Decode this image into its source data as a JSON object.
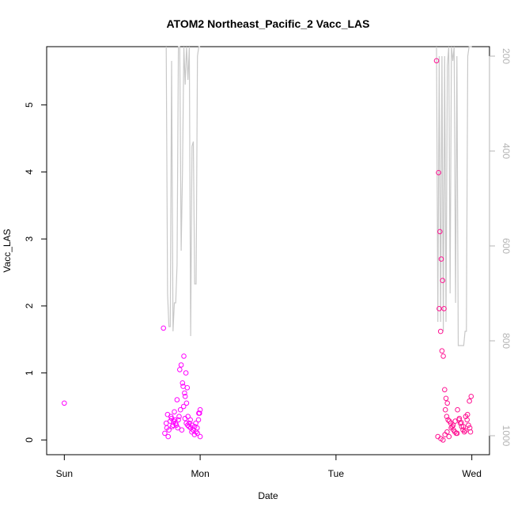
{
  "chart_data": {
    "type": "scatter",
    "title": "ATOM2 Northeast_Pacific_2 Vacc_LAS",
    "xlabel": "Date",
    "ylabel": "Vacc_LAS",
    "x_unit": "days",
    "x_ticks": [
      {
        "x": 0,
        "label": "Sun"
      },
      {
        "x": 1,
        "label": "Mon"
      },
      {
        "x": 2,
        "label": "Tue"
      },
      {
        "x": 3,
        "label": "Wed"
      }
    ],
    "xlim": [
      -0.13,
      3.13
    ],
    "ylim": [
      -0.22,
      5.87
    ],
    "y_ticks": [
      0,
      1,
      2,
      3,
      4,
      5
    ],
    "y2_ticks": [
      200,
      400,
      600,
      800,
      1000
    ],
    "y2lim": [
      1040,
      180
    ],
    "grid": false,
    "colors": {
      "points": "#ff00ff",
      "points_alt": "#ff1493",
      "secondary_line": "#c8c8c8",
      "axis": "#000000",
      "secondary_axis": "#b4b4b4"
    },
    "series": [
      {
        "kind": "points",
        "color": "#ff00ff",
        "x": [
          0.0,
          0.73,
          0.75,
          0.76,
          0.77,
          0.78,
          0.79,
          0.8,
          0.81,
          0.82,
          0.83,
          0.84,
          0.85,
          0.86,
          0.87,
          0.875,
          0.88,
          0.885,
          0.89,
          0.895,
          0.9,
          0.905,
          0.91,
          0.92,
          0.93,
          0.94,
          0.95,
          0.96,
          0.97,
          0.98,
          0.99,
          1.0,
          1.0,
          0.74,
          0.755,
          0.765,
          0.785,
          0.795,
          0.805,
          0.815,
          0.825,
          0.835,
          0.845,
          0.855,
          0.865,
          0.878,
          0.888,
          0.898,
          0.908,
          0.918,
          0.928,
          0.938,
          0.948,
          0.958,
          0.968,
          0.978,
          0.988,
          0.995
        ],
        "values": [
          0.55,
          1.67,
          0.25,
          0.38,
          0.15,
          0.28,
          0.32,
          0.22,
          0.42,
          0.25,
          0.6,
          0.3,
          1.05,
          1.12,
          0.85,
          0.8,
          1.25,
          0.7,
          0.65,
          1.0,
          0.55,
          0.78,
          0.35,
          0.25,
          0.18,
          0.22,
          0.15,
          0.2,
          0.12,
          0.1,
          0.4,
          0.45,
          0.05,
          0.1,
          0.18,
          0.05,
          0.35,
          0.2,
          0.28,
          0.3,
          0.22,
          0.18,
          0.35,
          0.45,
          0.15,
          0.5,
          0.32,
          0.25,
          0.22,
          0.2,
          0.3,
          0.12,
          0.15,
          0.08,
          0.25,
          0.18,
          0.3,
          0.4
        ]
      },
      {
        "kind": "points",
        "color": "#ff1493",
        "x": [
          2.74,
          2.76,
          2.77,
          2.78,
          2.79,
          2.8,
          2.81,
          2.82,
          2.755,
          2.765,
          2.775,
          2.785,
          2.795,
          2.805,
          2.815,
          2.825,
          2.835,
          2.845,
          2.855,
          2.865,
          2.875,
          2.885,
          2.895,
          2.905,
          2.915,
          2.925,
          2.935,
          2.945,
          2.955,
          2.965,
          2.975,
          2.985,
          2.995,
          2.75,
          2.772,
          2.788,
          2.802,
          2.818,
          2.832,
          2.848,
          2.862,
          2.878,
          2.892,
          2.908,
          2.922,
          2.938,
          2.952,
          2.968,
          2.982,
          2.99
        ],
        "values": [
          5.66,
          1.96,
          1.62,
          1.33,
          1.25,
          0.75,
          0.62,
          0.55,
          3.99,
          3.11,
          2.7,
          2.38,
          1.96,
          0.45,
          0.35,
          0.3,
          0.28,
          0.25,
          0.2,
          0.15,
          0.12,
          0.1,
          0.45,
          0.3,
          0.25,
          0.2,
          0.15,
          0.12,
          0.35,
          0.3,
          0.22,
          0.18,
          0.65,
          0.05,
          0.02,
          0.0,
          0.08,
          0.12,
          0.05,
          0.18,
          0.22,
          0.28,
          0.1,
          0.32,
          0.26,
          0.2,
          0.14,
          0.38,
          0.58,
          0.12
        ]
      },
      {
        "kind": "line",
        "name": "",
        "color": "#c8c8c8",
        "segments": [
          {
            "x": [
              0.75,
              0.76,
              0.77,
              0.78,
              0.79,
              0.8,
              0.81,
              0.82,
              0.83,
              0.84,
              0.85,
              0.86,
              0.87,
              0.88,
              0.89,
              0.9,
              0.91,
              0.92,
              0.93,
              0.94,
              0.95,
              0.96,
              0.97,
              0.98,
              0.99,
              1.0
            ],
            "y2": [
              180,
              700,
              770,
              770,
              210,
              780,
              720,
              720,
              640,
              180,
              180,
              610,
              440,
              180,
              260,
              180,
              250,
              180,
              790,
              390,
              380,
              680,
              680,
              200,
              180,
              180
            ]
          },
          {
            "x": [
              2.74,
              2.75,
              2.76,
              2.77,
              2.78,
              2.79,
              2.8,
              2.81,
              2.82,
              2.83,
              2.84,
              2.85,
              2.86,
              2.87,
              2.88,
              2.89,
              2.9,
              2.91,
              2.92,
              2.93,
              2.94,
              2.95,
              2.96,
              2.97,
              2.98,
              2.99,
              3.0
            ],
            "y2": [
              180,
              760,
              200,
              760,
              200,
              780,
              200,
              760,
              220,
              180,
              700,
              180,
              210,
              180,
              720,
              200,
              810,
              810,
              810,
              810,
              810,
              780,
              780,
              200,
              180,
              180,
              180
            ]
          }
        ]
      }
    ]
  }
}
